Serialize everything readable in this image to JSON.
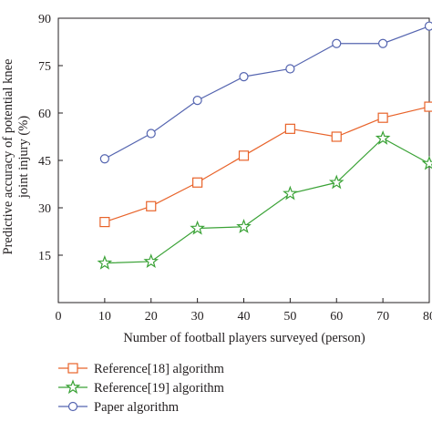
{
  "chart_data": {
    "type": "line",
    "xlabel": "Number of football players surveyed (person)",
    "ylabel_lines": [
      "Predictive accuracy of potential knee",
      "joint injury (%)"
    ],
    "xlim": [
      0,
      80
    ],
    "ylim": [
      0,
      90
    ],
    "x_ticks": [
      0,
      10,
      20,
      30,
      40,
      50,
      60,
      70,
      80
    ],
    "x_tick_labels": [
      "0",
      "10",
      "20",
      "30",
      "40",
      "50",
      "60",
      "70",
      "80"
    ],
    "y_ticks": [
      15,
      30,
      45,
      60,
      75,
      90
    ],
    "y_tick_labels": [
      "15",
      "30",
      "45",
      "60",
      "75",
      "90"
    ],
    "grid": false,
    "legend_position": "bottom-left, below plot",
    "x": [
      10,
      20,
      30,
      40,
      50,
      60,
      70,
      80
    ],
    "series": [
      {
        "name": "Reference[18] algorithm",
        "marker": "square",
        "color": "#e8632a",
        "values": [
          25.5,
          30.5,
          38.0,
          46.5,
          55.0,
          52.5,
          58.5,
          62.0
        ]
      },
      {
        "name": "Reference[19] algorithm",
        "marker": "star",
        "color": "#3aa236",
        "values": [
          12.5,
          13.0,
          23.5,
          24.0,
          34.5,
          38.0,
          52.0,
          44.0
        ]
      },
      {
        "name": "Paper algorithm",
        "marker": "circle",
        "color": "#5565b0",
        "values": [
          45.5,
          53.5,
          64.0,
          71.5,
          74.0,
          82.0,
          82.0,
          87.5
        ]
      }
    ]
  }
}
